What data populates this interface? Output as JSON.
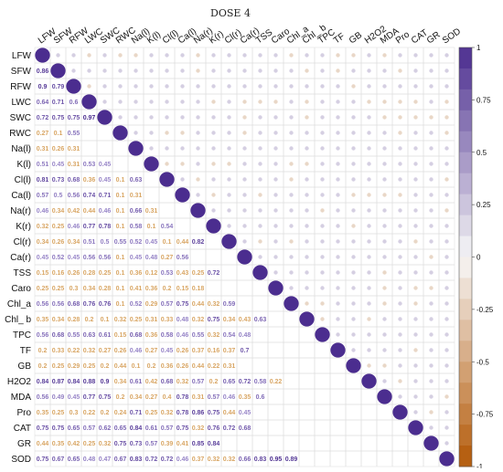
{
  "chart_data": {
    "type": "heatmap",
    "title": "DOSE 4",
    "variables": [
      "LFW",
      "SFW",
      "RFW",
      "LWC",
      "SWC",
      "RWC",
      "Na(l)",
      "K(l)",
      "Cl(l)",
      "Ca(l)",
      "Na(r)",
      "K(r)",
      "Cl(r)",
      "Ca(r)",
      "TSS",
      "Caro",
      "Chl_a",
      "Chl_ b",
      "TPC",
      "TF",
      "GB",
      "H2O2",
      "MDA",
      "Pro",
      "CAT",
      "GR",
      "SOD"
    ],
    "lower_triangle_values": {
      "SFW": [
        0.86
      ],
      "RFW": [
        0.9,
        0.79
      ],
      "LWC": [
        0.64,
        0.71,
        0.6
      ],
      "SWC": [
        0.72,
        0.75,
        0.75,
        0.97
      ],
      "RWC": [
        0.27,
        0.1,
        0.55
      ],
      "Na(l)": [
        0.31,
        0.26,
        0.31
      ],
      "K(l)": [
        0.51,
        0.45,
        0.31,
        0.53,
        0.45
      ],
      "Cl(l)": [
        0.81,
        0.73,
        0.68,
        0.36,
        0.45,
        0.1,
        0.63
      ],
      "Ca(l)": [
        0.57,
        0.5,
        0.56,
        0.74,
        0.71,
        0.1,
        0.31
      ],
      "Na(r)": [
        0.46,
        0.34,
        0.42,
        0.44,
        0.46,
        0.1,
        0.66,
        0.31
      ],
      "K(r)": [
        0.32,
        0.25,
        0.46,
        0.77,
        0.78,
        0.1,
        0.58,
        0.1,
        0.54
      ],
      "Cl(r)": [
        0.34,
        0.26,
        0.34,
        0.51,
        0.5,
        0.55,
        0.52,
        0.45,
        0.1,
        0.44,
        0.82
      ],
      "Ca(r)": [
        0.45,
        0.52,
        0.45,
        0.56,
        0.56,
        0.1,
        0.45,
        0.48,
        0.27,
        0.56
      ],
      "TSS": [
        0.15,
        0.16,
        0.26,
        0.28,
        0.25,
        0.1,
        0.36,
        0.12,
        0.53,
        0.43,
        0.25,
        0.72
      ],
      "Caro": [
        0.25,
        0.25,
        0.3,
        0.34,
        0.28,
        0.1,
        0.41,
        0.36,
        0.2,
        0.15,
        0.18
      ],
      "Chl_a": [
        0.56,
        0.56,
        0.68,
        0.76,
        0.76,
        0.1,
        0.52,
        0.29,
        0.57,
        0.75,
        0.44,
        0.32,
        0.59
      ],
      "Chl_ b": [
        0.35,
        0.34,
        0.28,
        0.2,
        0.1,
        0.32,
        0.25,
        0.31,
        0.33,
        0.48,
        0.32,
        0.75,
        0.34,
        0.43,
        0.63
      ],
      "TPC": [
        0.56,
        0.68,
        0.55,
        0.63,
        0.61,
        0.15,
        0.68,
        0.36,
        0.58,
        0.46,
        0.55,
        0.32,
        0.54,
        0.48
      ],
      "TF": [
        0.2,
        0.33,
        0.22,
        0.32,
        0.27,
        0.26,
        0.46,
        0.27,
        0.45,
        0.26,
        0.37,
        0.16,
        0.37,
        0.7
      ],
      "GB": [
        0.2,
        0.25,
        0.29,
        0.25,
        0.2,
        0.44,
        0.1,
        0.2,
        0.36,
        0.26,
        0.44,
        0.22,
        0.31
      ],
      "H2O2": [
        0.84,
        0.87,
        0.84,
        0.88,
        0.9,
        0.34,
        0.61,
        0.42,
        0.68,
        0.32,
        0.57,
        0.2,
        0.65,
        0.72,
        0.58,
        0.22
      ],
      "MDA": [
        0.56,
        0.49,
        0.45,
        0.77,
        0.75,
        0.2,
        0.34,
        0.27,
        0.4,
        0.78,
        0.31,
        0.57,
        0.46,
        0.35,
        0.6
      ],
      "Pro": [
        0.35,
        0.25,
        0.3,
        0.22,
        0.2,
        0.24,
        0.71,
        0.25,
        0.32,
        0.78,
        0.86,
        0.75,
        0.44,
        0.45
      ],
      "CAT": [
        0.75,
        0.75,
        0.65,
        0.57,
        0.62,
        0.65,
        0.84,
        0.61,
        0.57,
        0.75,
        0.32,
        0.76,
        0.72,
        0.68
      ],
      "GR": [
        0.44,
        0.35,
        0.42,
        0.25,
        0.32,
        0.75,
        0.73,
        0.57,
        0.39,
        0.41,
        0.85,
        0.84
      ],
      "SOD": [
        0.75,
        0.67,
        0.65,
        0.48,
        0.47,
        0.67,
        0.83,
        0.72,
        0.72,
        0.46,
        0.37,
        0.32,
        0.32,
        0.66,
        0.83,
        0.95,
        0.89
      ]
    },
    "colorbar": {
      "ticks": [
        1,
        0.75,
        0.5,
        0.25,
        0,
        -0.25,
        -0.5,
        -0.75,
        -1
      ],
      "ticklabels": [
        "1",
        "0.75",
        "0.5",
        "0.25",
        "0",
        "-0.25",
        "-0.5",
        "-0.75",
        "-1"
      ],
      "positive_color": "#4b2d8f",
      "negative_color": "#b35806"
    }
  }
}
